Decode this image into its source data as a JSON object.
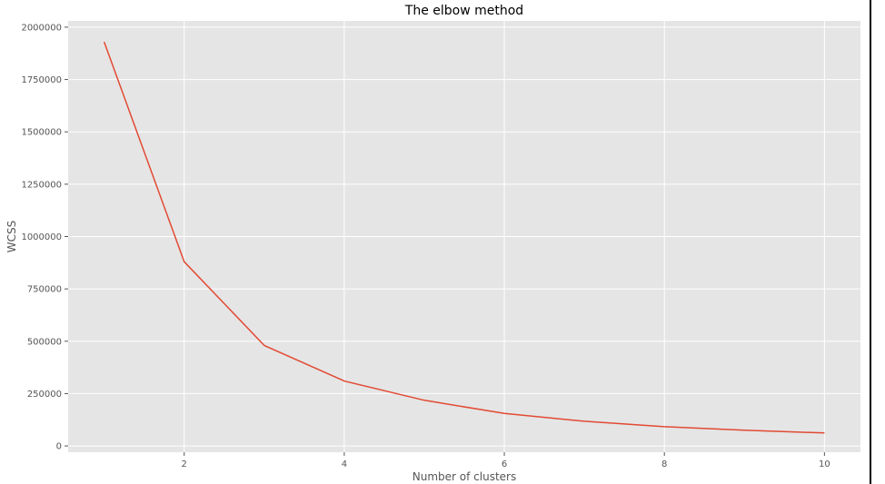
{
  "chart_data": {
    "type": "line",
    "title": "The elbow method",
    "xlabel": "Number of clusters",
    "ylabel": "WCSS",
    "x": [
      1,
      2,
      3,
      4,
      5,
      6,
      7,
      8,
      9,
      10
    ],
    "series": [
      {
        "values": [
          1930000,
          880000,
          480000,
          310000,
          218000,
          155000,
          118000,
          92000,
          75000,
          62000
        ],
        "color": "#e24a33"
      }
    ],
    "xlim": [
      0.55,
      10.45
    ],
    "ylim": [
      -30000,
      2030000
    ],
    "xticks": [
      2,
      4,
      6,
      8,
      10
    ],
    "yticks": [
      0,
      250000,
      500000,
      750000,
      1000000,
      1250000,
      1500000,
      1750000,
      2000000
    ],
    "grid": true,
    "style": {
      "plot_background": "#e5e5e5",
      "grid_color": "#ffffff"
    }
  }
}
